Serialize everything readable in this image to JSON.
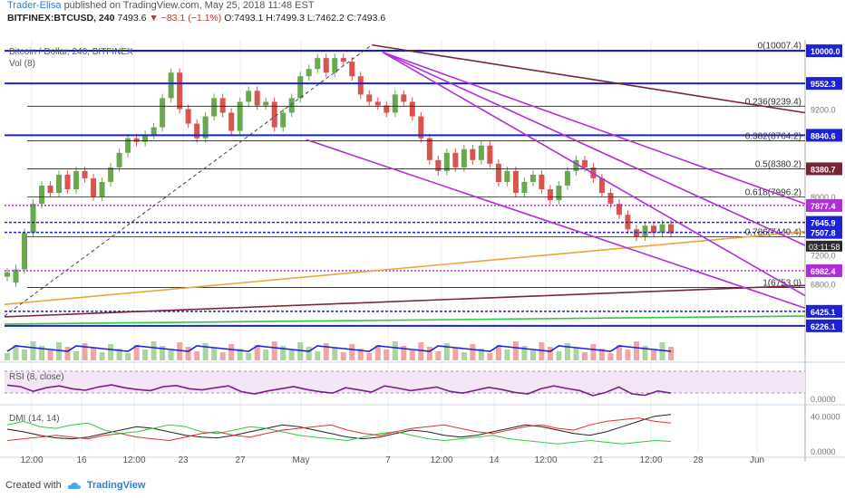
{
  "header": {
    "author": "Trader-Elisa",
    "published_text": "published on TradingView.com, May 25, 2018 11:48 EST",
    "symbol_line": "BITFINEX:BTCUSD, 240",
    "last": "7493.6",
    "change": "▼ −83.1 (−1.1%)",
    "ohlc": "O:7493.1 H:7499.3 L:7462.2 C:7493.6"
  },
  "footer": {
    "created_with": "Created with",
    "brand": "TradingView"
  },
  "colors": {
    "blue_level": "#1c22d6",
    "purple_channel": "#b12ddb",
    "brown_trend": "#7b2533",
    "orange_trend": "#f2a23c",
    "up_candle": "#6aa84f",
    "down_candle": "#d9534f",
    "rsi_line": "#7a1e8a",
    "dmi_plus": "#2ecc40",
    "dmi_minus": "#e03030",
    "adx": "#222222"
  },
  "chart_data": {
    "type": "candlestick",
    "title": "Bitcoin / Dollar, 240, BITFINEX",
    "volume_label": "Vol (8)",
    "x_tick_labels": [
      "12:00",
      "16",
      "12:00",
      "23",
      "27",
      "May",
      "7",
      "12:00",
      "14",
      "12:00",
      "21",
      "12:00",
      "28",
      "Jun"
    ],
    "y_tick_labels": [
      "9200.0",
      "8000.0",
      "7200.0",
      "6800.0"
    ],
    "y_range_approx": [
      6100,
      10150
    ],
    "price_candles_approx": [
      [
        6900,
        6960
      ],
      [
        6820,
        7000
      ],
      [
        7000,
        7500
      ],
      [
        7500,
        7900
      ],
      [
        7900,
        8150
      ],
      [
        8150,
        8050
      ],
      [
        8050,
        8300
      ],
      [
        8300,
        8100
      ],
      [
        8100,
        8350
      ],
      [
        8350,
        8250
      ],
      [
        8250,
        8000
      ],
      [
        8000,
        8200
      ],
      [
        8200,
        8400
      ],
      [
        8400,
        8600
      ],
      [
        8600,
        8800
      ],
      [
        8800,
        8750
      ],
      [
        8750,
        8850
      ],
      [
        8850,
        8950
      ],
      [
        8950,
        9350
      ],
      [
        9350,
        9700
      ],
      [
        9700,
        9200
      ],
      [
        9200,
        9000
      ],
      [
        9000,
        8800
      ],
      [
        8800,
        9100
      ],
      [
        9100,
        9350
      ],
      [
        9350,
        9150
      ],
      [
        9150,
        8900
      ],
      [
        8900,
        9300
      ],
      [
        9300,
        9450
      ],
      [
        9450,
        9250
      ],
      [
        9250,
        9300
      ],
      [
        9300,
        8950
      ],
      [
        8950,
        9150
      ],
      [
        9150,
        9350
      ],
      [
        9350,
        9650
      ],
      [
        9650,
        9750
      ],
      [
        9750,
        9900
      ],
      [
        9900,
        9700
      ],
      [
        9700,
        9900
      ],
      [
        9900,
        9850
      ],
      [
        9850,
        9650
      ],
      [
        9650,
        9400
      ],
      [
        9400,
        9300
      ],
      [
        9300,
        9250
      ],
      [
        9250,
        9150
      ],
      [
        9150,
        9400
      ],
      [
        9400,
        9300
      ],
      [
        9300,
        9100
      ],
      [
        9100,
        8800
      ],
      [
        8800,
        8500
      ],
      [
        8500,
        8350
      ],
      [
        8350,
        8600
      ],
      [
        8600,
        8400
      ],
      [
        8400,
        8650
      ],
      [
        8650,
        8500
      ],
      [
        8500,
        8700
      ],
      [
        8700,
        8450
      ],
      [
        8450,
        8200
      ],
      [
        8200,
        8350
      ],
      [
        8350,
        8050
      ],
      [
        8050,
        8200
      ],
      [
        8200,
        8300
      ],
      [
        8300,
        8100
      ],
      [
        8100,
        7950
      ],
      [
        7950,
        8150
      ],
      [
        8150,
        8350
      ],
      [
        8350,
        8500
      ],
      [
        8500,
        8400
      ],
      [
        8400,
        8250
      ],
      [
        8250,
        8050
      ],
      [
        8050,
        7900
      ],
      [
        7900,
        7750
      ],
      [
        7750,
        7550
      ],
      [
        7550,
        7450
      ],
      [
        7450,
        7600
      ],
      [
        7600,
        7500
      ],
      [
        7500,
        7620
      ],
      [
        7620,
        7494
      ]
    ],
    "horizontal_levels": [
      {
        "price": 10000.0,
        "label": "10000.0",
        "style": "solid",
        "color": "#1c22d6"
      },
      {
        "price": 9552.3,
        "label": "9552.3",
        "style": "solid",
        "color": "#1c22d6"
      },
      {
        "price": 8840.6,
        "label": "8840.6",
        "style": "solid",
        "color": "#1c22d6"
      },
      {
        "price": 8380.7,
        "label": "8380.7",
        "style": "box",
        "color": "#7b2533"
      },
      {
        "price": 7877.4,
        "label": "7877.4",
        "style": "dotted",
        "color": "#b12ddb"
      },
      {
        "price": 7645.9,
        "label": "7645.9",
        "style": "dashed",
        "color": "#1c22d6"
      },
      {
        "price": 7507.8,
        "label": "7507.8",
        "style": "dashed",
        "color": "#1c22d6"
      },
      {
        "price": 6982.4,
        "label": "6982.4",
        "style": "dotted",
        "color": "#b12ddb"
      },
      {
        "price": 6425.1,
        "label": "6425.1",
        "style": "dashed",
        "color": "#1c22d6"
      },
      {
        "price": 6226.1,
        "label": "6226.1",
        "style": "solid",
        "color": "#1c22d6"
      }
    ],
    "fibonacci": [
      {
        "ratio": "0",
        "price": "10007.4"
      },
      {
        "ratio": "0.236",
        "price": "9239.4"
      },
      {
        "ratio": "0.382",
        "price": "8764.2"
      },
      {
        "ratio": "0.5",
        "price": "8380.2"
      },
      {
        "ratio": "0.618",
        "price": "7996.2"
      },
      {
        "ratio": "0.786",
        "price": "7449.4"
      },
      {
        "ratio": "1",
        "price": "6753.0"
      }
    ],
    "last_price_label": "7493.6",
    "countdown_label": "03:11:58",
    "trendlines": [
      {
        "name": "brown-upper",
        "from": [
          "May 5",
          10080
        ],
        "to": [
          "end",
          9150
        ],
        "color": "#7b2533"
      },
      {
        "name": "brown-lower",
        "from": [
          "start",
          6350
        ],
        "to": [
          "end",
          6780
        ],
        "color": "#7b2533"
      },
      {
        "name": "orange",
        "from": [
          "start",
          6520
        ],
        "to": [
          "end",
          7520
        ],
        "color": "#f2a23c"
      },
      {
        "name": "purple-1",
        "from": [
          "May 6",
          9980
        ],
        "to": [
          "end",
          7330
        ],
        "color": "#b12ddb"
      },
      {
        "name": "purple-2",
        "from": [
          "May 6",
          9980
        ],
        "to": [
          "end",
          6640
        ],
        "color": "#b12ddb"
      },
      {
        "name": "purple-3",
        "from": [
          "May 6",
          9980
        ],
        "to": [
          "end",
          7900
        ],
        "color": "#b12ddb"
      },
      {
        "name": "purple-lower",
        "from": [
          "May 3",
          8780
        ],
        "to": [
          "end",
          6470
        ],
        "color": "#b12ddb"
      },
      {
        "name": "green-support",
        "from": [
          "start",
          6250
        ],
        "to": [
          "end",
          6360
        ],
        "color": "#2ecc40"
      },
      {
        "name": "dashed-black",
        "from": [
          "start",
          6360
        ],
        "to": [
          "May 5",
          10080
        ],
        "color": "#444444"
      }
    ],
    "rsi": {
      "label": "RSI (8, close)",
      "y_tick_labels": [
        "0.0000"
      ],
      "values_approx": [
        62,
        58,
        45,
        55,
        60,
        52,
        48,
        57,
        63,
        55,
        50,
        47,
        58,
        61,
        52,
        49,
        55,
        60,
        44,
        38,
        46,
        52,
        58,
        50,
        44,
        40,
        55,
        49,
        43,
        60,
        54,
        47,
        52,
        57,
        45,
        40,
        48,
        56,
        50,
        42,
        38,
        52,
        60,
        53,
        47,
        33,
        42,
        57,
        38,
        34,
        46,
        40
      ]
    },
    "dmi": {
      "label": "DMI (14, 14)",
      "y_tick_labels": [
        "40.0000",
        "0.0000"
      ],
      "adx_approx": [
        25,
        22,
        18,
        15,
        14,
        16,
        20,
        24,
        28,
        26,
        22,
        18,
        16,
        15,
        18,
        22,
        26,
        30,
        28,
        24,
        20,
        16,
        14,
        16,
        20,
        24,
        22,
        18,
        16,
        18,
        22,
        26,
        30,
        28,
        24,
        20,
        18,
        22,
        28,
        34,
        40,
        42
      ],
      "plus_di_approx": [
        30,
        34,
        28,
        26,
        30,
        32,
        24,
        20,
        22,
        26,
        30,
        28,
        22,
        20,
        24,
        28,
        26,
        22,
        18,
        16,
        14,
        12,
        16,
        20,
        22,
        18,
        14,
        12,
        14,
        16,
        18,
        14,
        12,
        10,
        8,
        10,
        12,
        10,
        8,
        10,
        12,
        11
      ],
      "minus_di_approx": [
        12,
        14,
        16,
        18,
        16,
        14,
        18,
        20,
        16,
        14,
        12,
        16,
        20,
        22,
        18,
        16,
        20,
        24,
        26,
        28,
        30,
        24,
        20,
        18,
        22,
        26,
        28,
        30,
        26,
        22,
        20,
        24,
        28,
        30,
        26,
        24,
        30,
        34,
        36,
        38,
        34,
        32
      ]
    }
  }
}
